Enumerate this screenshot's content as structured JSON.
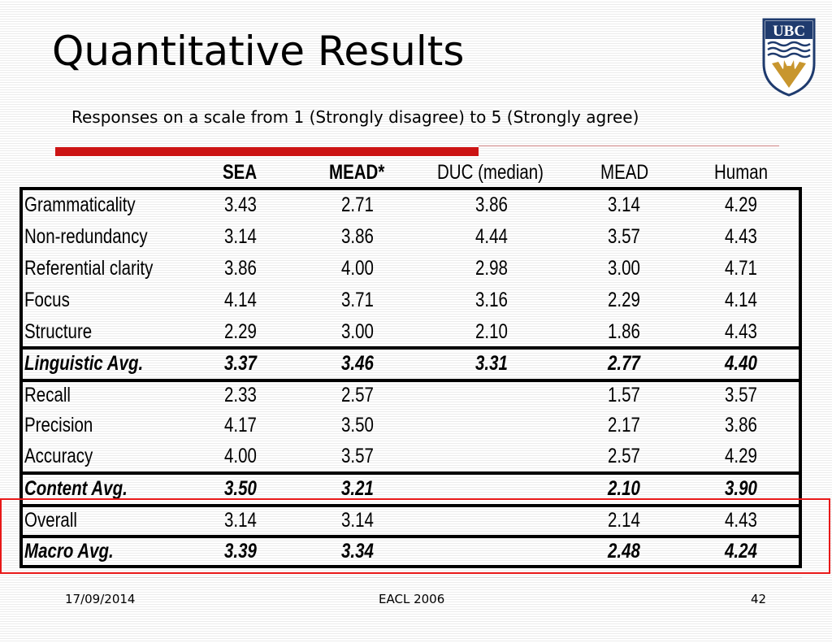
{
  "slide": {
    "title": "Quantitative Results",
    "subtitle": "Responses on a scale from 1 (Strongly disagree) to 5 (Strongly agree)",
    "logo_text": "UBC"
  },
  "table": {
    "columns": [
      "",
      "SEA",
      "MEAD*",
      "DUC (median)",
      "MEAD",
      "Human"
    ],
    "rows": [
      {
        "label": "Grammaticality",
        "values": [
          "3.43",
          "2.71",
          "3.86",
          "3.14",
          "4.29"
        ],
        "emphasis": false
      },
      {
        "label": "Non-redundancy",
        "values": [
          "3.14",
          "3.86",
          "4.44",
          "3.57",
          "4.43"
        ],
        "emphasis": false
      },
      {
        "label": "Referential clarity",
        "values": [
          "3.86",
          "4.00",
          "2.98",
          "3.00",
          "4.71"
        ],
        "emphasis": false
      },
      {
        "label": "Focus",
        "values": [
          "4.14",
          "3.71",
          "3.16",
          "2.29",
          "4.14"
        ],
        "emphasis": false
      },
      {
        "label": "Structure",
        "values": [
          "2.29",
          "3.00",
          "2.10",
          "1.86",
          "4.43"
        ],
        "emphasis": false
      },
      {
        "label": "Linguistic Avg.",
        "values": [
          "3.37",
          "3.46",
          "3.31",
          "2.77",
          "4.40"
        ],
        "emphasis": true
      },
      {
        "label": "Recall",
        "values": [
          "2.33",
          "2.57",
          "",
          "1.57",
          "3.57"
        ],
        "emphasis": false
      },
      {
        "label": "Precision",
        "values": [
          "4.17",
          "3.50",
          "",
          "2.17",
          "3.86"
        ],
        "emphasis": false
      },
      {
        "label": "Accuracy",
        "values": [
          "4.00",
          "3.57",
          "",
          "2.57",
          "4.29"
        ],
        "emphasis": false
      },
      {
        "label": "Content Avg.",
        "values": [
          "3.50",
          "3.21",
          "",
          "2.10",
          "3.90"
        ],
        "emphasis": true
      },
      {
        "label": "Overall",
        "values": [
          "3.14",
          "3.14",
          "",
          "2.14",
          "4.43"
        ],
        "emphasis": false
      },
      {
        "label": "Macro Avg.",
        "values": [
          "3.39",
          "3.34",
          "",
          "2.48",
          "4.24"
        ],
        "emphasis": true
      }
    ]
  },
  "footer": {
    "date": "17/09/2014",
    "venue": "EACL 2006",
    "page": "42"
  },
  "colors": {
    "accent_red": "#cc1414",
    "highlight_box": "#e81818",
    "logo_blue": "#1f3b6e",
    "logo_gold": "#c8962e"
  }
}
